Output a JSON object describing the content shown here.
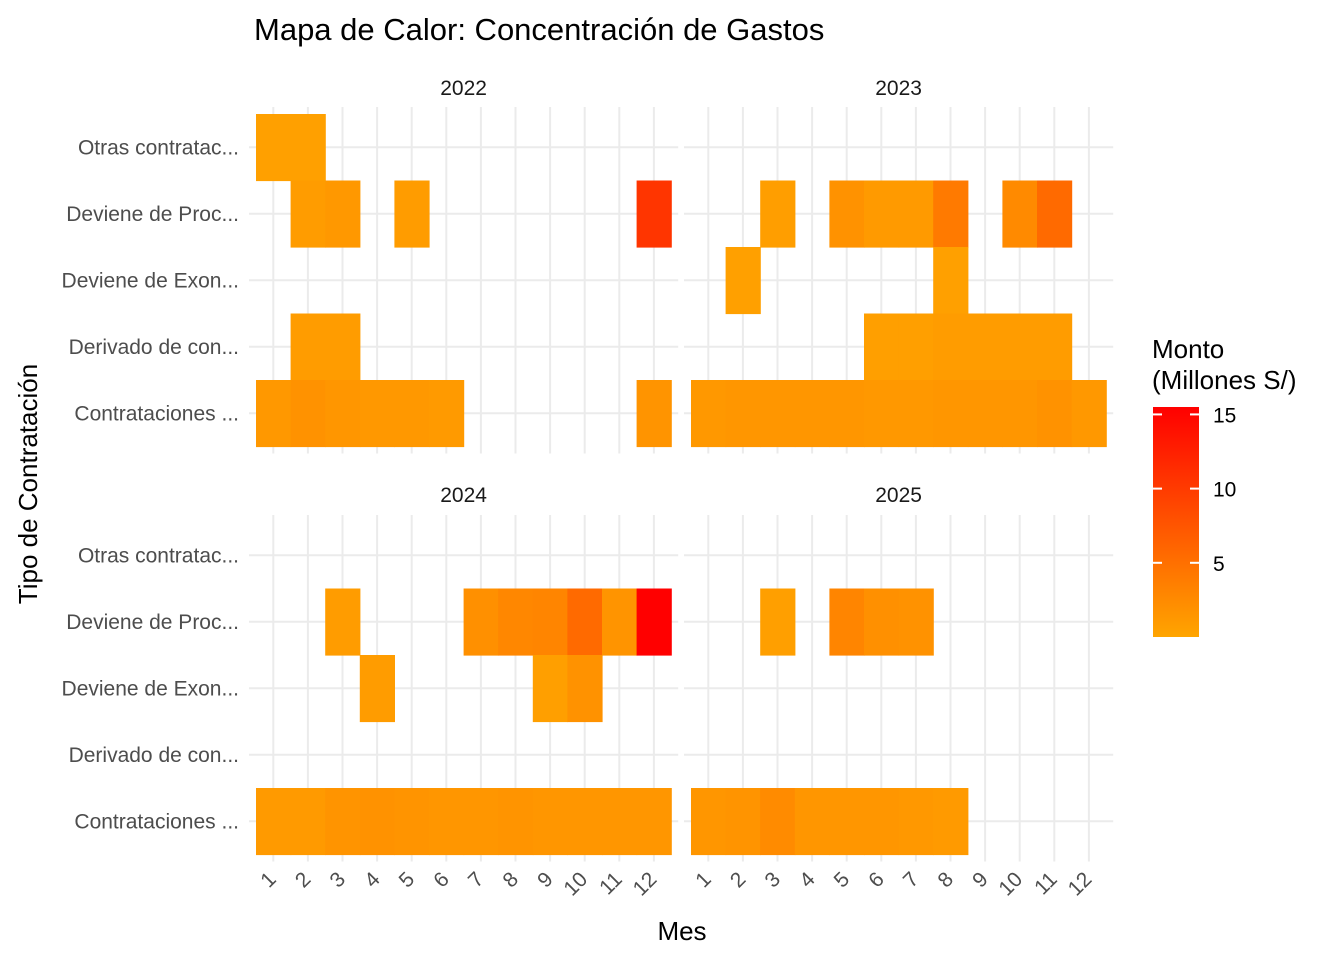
{
  "chart_data": {
    "type": "heatmap",
    "title": "Mapa de Calor: Concentración de Gastos",
    "xlabel": "Mes",
    "ylabel": "Tipo de Contratación",
    "x": [
      1,
      2,
      3,
      4,
      5,
      6,
      7,
      8,
      9,
      10,
      11,
      12
    ],
    "x_labels": [
      "1",
      "2",
      "3",
      "4",
      "5",
      "6",
      "7",
      "8",
      "9",
      "10",
      "11",
      "12"
    ],
    "categories": [
      "Contrataciones ...",
      "Derivado de con...",
      "Deviene de Exon...",
      "Deviene de Proc...",
      "Otras contratac..."
    ],
    "grid": true,
    "legend": {
      "title_line1": "Monto",
      "title_line2": "(Millones S/)",
      "ticks": [
        5,
        10,
        15
      ],
      "tick_labels": [
        "5",
        "10",
        "15"
      ],
      "range": [
        0,
        15.5
      ],
      "position": "right",
      "color_low": "#FFA500",
      "color_high": "#FF0000"
    },
    "panels": [
      {
        "label": "2022",
        "cells": [
          {
            "category": "Otras contratac...",
            "month": 1,
            "value": 0.5
          },
          {
            "category": "Otras contratac...",
            "month": 2,
            "value": 0.5
          },
          {
            "category": "Deviene de Proc...",
            "month": 2,
            "value": 0.8
          },
          {
            "category": "Deviene de Proc...",
            "month": 3,
            "value": 1.2
          },
          {
            "category": "Deviene de Proc...",
            "month": 5,
            "value": 0.8
          },
          {
            "category": "Deviene de Proc...",
            "month": 12,
            "value": 10.5
          },
          {
            "category": "Derivado de con...",
            "month": 2,
            "value": 0.8
          },
          {
            "category": "Derivado de con...",
            "month": 3,
            "value": 0.8
          },
          {
            "category": "Contrataciones ...",
            "month": 1,
            "value": 1.2
          },
          {
            "category": "Contrataciones ...",
            "month": 2,
            "value": 1.8
          },
          {
            "category": "Contrataciones ...",
            "month": 3,
            "value": 1.4
          },
          {
            "category": "Contrataciones ...",
            "month": 4,
            "value": 1.2
          },
          {
            "category": "Contrataciones ...",
            "month": 5,
            "value": 1.2
          },
          {
            "category": "Contrataciones ...",
            "month": 6,
            "value": 1.0
          },
          {
            "category": "Contrataciones ...",
            "month": 12,
            "value": 1.6
          }
        ]
      },
      {
        "label": "2023",
        "cells": [
          {
            "category": "Deviene de Proc...",
            "month": 3,
            "value": 0.7
          },
          {
            "category": "Deviene de Proc...",
            "month": 5,
            "value": 1.8
          },
          {
            "category": "Deviene de Proc...",
            "month": 6,
            "value": 1.0
          },
          {
            "category": "Deviene de Proc...",
            "month": 7,
            "value": 1.0
          },
          {
            "category": "Deviene de Proc...",
            "month": 8,
            "value": 4.0
          },
          {
            "category": "Deviene de Proc...",
            "month": 10,
            "value": 2.5
          },
          {
            "category": "Deviene de Proc...",
            "month": 11,
            "value": 5.5
          },
          {
            "category": "Deviene de Exon...",
            "month": 2,
            "value": 0.5
          },
          {
            "category": "Deviene de Exon...",
            "month": 8,
            "value": 0.5
          },
          {
            "category": "Derivado de con...",
            "month": 6,
            "value": 0.6
          },
          {
            "category": "Derivado de con...",
            "month": 7,
            "value": 0.6
          },
          {
            "category": "Derivado de con...",
            "month": 8,
            "value": 0.8
          },
          {
            "category": "Derivado de con...",
            "month": 9,
            "value": 0.8
          },
          {
            "category": "Derivado de con...",
            "month": 10,
            "value": 0.8
          },
          {
            "category": "Derivado de con...",
            "month": 11,
            "value": 0.8
          },
          {
            "category": "Contrataciones ...",
            "month": 1,
            "value": 1.2
          },
          {
            "category": "Contrataciones ...",
            "month": 2,
            "value": 1.4
          },
          {
            "category": "Contrataciones ...",
            "month": 3,
            "value": 1.4
          },
          {
            "category": "Contrataciones ...",
            "month": 4,
            "value": 1.4
          },
          {
            "category": "Contrataciones ...",
            "month": 5,
            "value": 1.4
          },
          {
            "category": "Contrataciones ...",
            "month": 6,
            "value": 1.2
          },
          {
            "category": "Contrataciones ...",
            "month": 7,
            "value": 1.2
          },
          {
            "category": "Contrataciones ...",
            "month": 8,
            "value": 1.4
          },
          {
            "category": "Contrataciones ...",
            "month": 9,
            "value": 1.4
          },
          {
            "category": "Contrataciones ...",
            "month": 10,
            "value": 1.4
          },
          {
            "category": "Contrataciones ...",
            "month": 11,
            "value": 1.8
          },
          {
            "category": "Contrataciones ...",
            "month": 12,
            "value": 1.2
          }
        ]
      },
      {
        "label": "2024",
        "cells": [
          {
            "category": "Deviene de Proc...",
            "month": 3,
            "value": 0.8
          },
          {
            "category": "Deviene de Proc...",
            "month": 7,
            "value": 2.0
          },
          {
            "category": "Deviene de Proc...",
            "month": 8,
            "value": 2.8
          },
          {
            "category": "Deviene de Proc...",
            "month": 9,
            "value": 3.0
          },
          {
            "category": "Deviene de Proc...",
            "month": 10,
            "value": 5.5
          },
          {
            "category": "Deviene de Proc...",
            "month": 11,
            "value": 1.6
          },
          {
            "category": "Deviene de Proc...",
            "month": 12,
            "value": 15.5
          },
          {
            "category": "Deviene de Exon...",
            "month": 4,
            "value": 0.8
          },
          {
            "category": "Deviene de Exon...",
            "month": 9,
            "value": 0.6
          },
          {
            "category": "Deviene de Exon...",
            "month": 10,
            "value": 1.8
          },
          {
            "category": "Contrataciones ...",
            "month": 1,
            "value": 1.0
          },
          {
            "category": "Contrataciones ...",
            "month": 2,
            "value": 1.0
          },
          {
            "category": "Contrataciones ...",
            "month": 3,
            "value": 1.6
          },
          {
            "category": "Contrataciones ...",
            "month": 4,
            "value": 1.8
          },
          {
            "category": "Contrataciones ...",
            "month": 5,
            "value": 1.6
          },
          {
            "category": "Contrataciones ...",
            "month": 6,
            "value": 1.4
          },
          {
            "category": "Contrataciones ...",
            "month": 7,
            "value": 1.4
          },
          {
            "category": "Contrataciones ...",
            "month": 8,
            "value": 1.6
          },
          {
            "category": "Contrataciones ...",
            "month": 9,
            "value": 1.4
          },
          {
            "category": "Contrataciones ...",
            "month": 10,
            "value": 1.4
          },
          {
            "category": "Contrataciones ...",
            "month": 11,
            "value": 1.4
          },
          {
            "category": "Contrataciones ...",
            "month": 12,
            "value": 1.4
          }
        ]
      },
      {
        "label": "2025",
        "cells": [
          {
            "category": "Deviene de Proc...",
            "month": 3,
            "value": 0.6
          },
          {
            "category": "Deviene de Proc...",
            "month": 5,
            "value": 3.0
          },
          {
            "category": "Deviene de Proc...",
            "month": 6,
            "value": 2.0
          },
          {
            "category": "Deviene de Proc...",
            "month": 7,
            "value": 1.8
          },
          {
            "category": "Contrataciones ...",
            "month": 1,
            "value": 1.4
          },
          {
            "category": "Contrataciones ...",
            "month": 2,
            "value": 1.6
          },
          {
            "category": "Contrataciones ...",
            "month": 3,
            "value": 2.4
          },
          {
            "category": "Contrataciones ...",
            "month": 4,
            "value": 1.4
          },
          {
            "category": "Contrataciones ...",
            "month": 5,
            "value": 1.4
          },
          {
            "category": "Contrataciones ...",
            "month": 6,
            "value": 1.4
          },
          {
            "category": "Contrataciones ...",
            "month": 7,
            "value": 1.2
          },
          {
            "category": "Contrataciones ...",
            "month": 8,
            "value": 1.0
          }
        ]
      }
    ]
  }
}
